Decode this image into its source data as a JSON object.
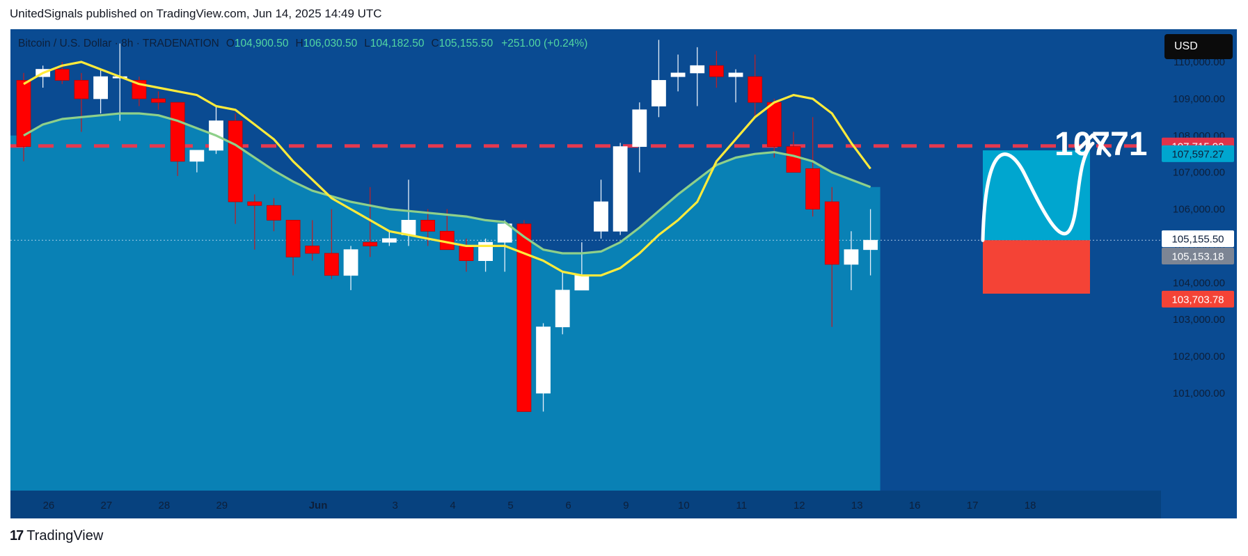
{
  "header": {
    "published_text": "UnitedSignals published on TradingView.com, Jun 14, 2025 14:49 UTC"
  },
  "symbol": {
    "name": "Bitcoin / U.S. Dollar · 8h · TRADENATION",
    "open_label": "O",
    "open": "104,900.50",
    "high_label": "H",
    "high": "106,030.50",
    "low_label": "L",
    "low": "104,182.50",
    "close_label": "C",
    "close": "105,155.50",
    "change": "+251.00 (+0.24%)"
  },
  "currency_button": "USD",
  "footer": {
    "logo_mark": "17",
    "logo_text": "TradingView"
  },
  "colors": {
    "background": "#0a4b92",
    "area_fill": "#0a86b8",
    "bull_candle": "#ffffff",
    "bear_candle": "#ff0000",
    "ema_fast": "#ffeb3b",
    "ema_slow": "#8ed08a",
    "resistance": "#e53950",
    "target_box": "#00a6cf",
    "stop_box": "#f44336"
  },
  "chart_data": {
    "type": "candlestick",
    "ylim": [
      100000,
      110500
    ],
    "y_ticks": [
      "110,000.00",
      "109,000.00",
      "108,000.00",
      "107,000.00",
      "106,000.00",
      "105,000.00",
      "104,000.00",
      "103,000.00",
      "102,000.00",
      "101,000.00"
    ],
    "y_tick_values": [
      110000,
      109000,
      108000,
      107000,
      106000,
      105000,
      104000,
      103000,
      102000,
      101000
    ],
    "x_labels": [
      "26",
      "27",
      "28",
      "29",
      "Jun",
      "3",
      "4",
      "5",
      "6",
      "9",
      "10",
      "11",
      "12",
      "13",
      "16",
      "17",
      "18"
    ],
    "x_label_index": [
      1.3,
      4.3,
      7.3,
      10.3,
      15.3,
      19.3,
      22.3,
      25.3,
      28.3,
      31.3,
      34.3,
      37.3,
      40.3,
      43.3,
      46.3,
      49.3,
      52.3
    ],
    "candles": [
      [
        109500,
        109700,
        107300,
        107700
      ],
      [
        109600,
        109900,
        109300,
        109800
      ],
      [
        109800,
        110000,
        109400,
        109500
      ],
      [
        109500,
        109700,
        108100,
        109000
      ],
      [
        109000,
        109800,
        108600,
        109600
      ],
      [
        109600,
        110500,
        108400,
        109600
      ],
      [
        109500,
        109600,
        108800,
        109000
      ],
      [
        109000,
        109200,
        108700,
        108900
      ],
      [
        108900,
        108900,
        106900,
        107300
      ],
      [
        107300,
        107600,
        107000,
        107600
      ],
      [
        107600,
        108800,
        107500,
        108400
      ],
      [
        108400,
        108600,
        105600,
        106200
      ],
      [
        106200,
        106400,
        104900,
        106100
      ],
      [
        106100,
        106300,
        105400,
        105700
      ],
      [
        105700,
        105700,
        104200,
        104700
      ],
      [
        105000,
        105700,
        104600,
        104800
      ],
      [
        104800,
        106000,
        104100,
        104200
      ],
      [
        104200,
        105000,
        103800,
        104900
      ],
      [
        105100,
        106600,
        104700,
        105000
      ],
      [
        105100,
        105400,
        105000,
        105200
      ],
      [
        105300,
        106800,
        105000,
        105700
      ],
      [
        105700,
        106000,
        105000,
        105400
      ],
      [
        105400,
        106000,
        104900,
        104900
      ],
      [
        105000,
        105200,
        104300,
        104600
      ],
      [
        104600,
        105200,
        104300,
        105100
      ],
      [
        105100,
        105700,
        104300,
        105600
      ],
      [
        105600,
        105700,
        100500,
        100500
      ],
      [
        101000,
        102900,
        100500,
        102800
      ],
      [
        102800,
        104300,
        102600,
        103800
      ],
      [
        103800,
        105100,
        103800,
        104200
      ],
      [
        105400,
        106800,
        105200,
        106200
      ],
      [
        105400,
        107800,
        105300,
        107700
      ],
      [
        107700,
        108900,
        107000,
        108700
      ],
      [
        108800,
        110600,
        108500,
        109500
      ],
      [
        109600,
        110200,
        109200,
        109700
      ],
      [
        109700,
        110400,
        108800,
        109900
      ],
      [
        109900,
        110300,
        109300,
        109600
      ],
      [
        109600,
        109800,
        108900,
        109700
      ],
      [
        109600,
        110200,
        108500,
        108900
      ],
      [
        108900,
        109000,
        107400,
        107700
      ],
      [
        107700,
        108100,
        107000,
        107000
      ],
      [
        107100,
        108500,
        105800,
        106000
      ],
      [
        106200,
        106600,
        102800,
        104500
      ],
      [
        104500,
        105400,
        103800,
        104900
      ],
      [
        104900,
        106000,
        104200,
        105155.5
      ]
    ],
    "ema_fast": [
      109400,
      109700,
      109900,
      110000,
      109800,
      109600,
      109400,
      109300,
      109200,
      109100,
      108800,
      108700,
      108300,
      107900,
      107300,
      106800,
      106300,
      106000,
      105700,
      105400,
      105300,
      105200,
      105100,
      105000,
      105000,
      105000,
      104800,
      104600,
      104300,
      104200,
      104200,
      104400,
      104800,
      105300,
      105700,
      106200,
      107300,
      107900,
      108500,
      108900,
      109100,
      109000,
      108600,
      107800,
      107100
    ],
    "ema_slow": [
      108000,
      108300,
      108450,
      108500,
      108550,
      108600,
      108600,
      108550,
      108400,
      108200,
      108000,
      107750,
      107400,
      107050,
      106750,
      106500,
      106350,
      106200,
      106100,
      106000,
      105950,
      105900,
      105850,
      105800,
      105700,
      105650,
      105250,
      104900,
      104800,
      104800,
      104850,
      105100,
      105500,
      105950,
      106400,
      106800,
      107200,
      107400,
      107500,
      107550,
      107450,
      107300,
      107000,
      106800,
      106600
    ],
    "resistance_level": 107715.92,
    "resistance_label": "107,715.92",
    "target_level": 107597.27,
    "target_label": "107,597.27",
    "current_price": 105155.5,
    "current_label": "105,155.50",
    "secondary_label": "105,153.18",
    "stop_level": 103703.78,
    "stop_label": "103,703.78",
    "projection_text": "10771"
  }
}
